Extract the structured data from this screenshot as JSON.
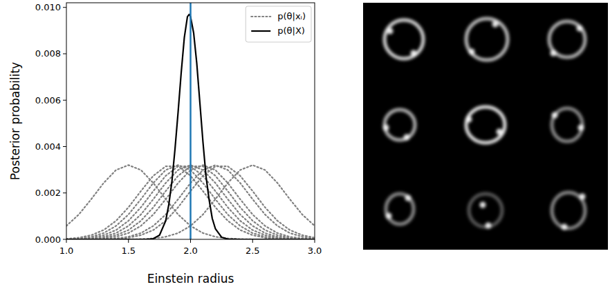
{
  "chart_data": {
    "type": "line",
    "x_label": "Einstein radius",
    "y_label": "Posterior probability",
    "xlim": [
      1.0,
      3.0
    ],
    "ylim": [
      0,
      0.0102
    ],
    "xticks": [
      {
        "value": 1.0,
        "label": "1.0"
      },
      {
        "value": 1.5,
        "label": "1.5"
      },
      {
        "value": 2.0,
        "label": "2.0"
      },
      {
        "value": 2.5,
        "label": "2.5"
      },
      {
        "value": 3.0,
        "label": "3.0"
      }
    ],
    "yticks": [
      {
        "value": 0,
        "label": "0.000"
      },
      {
        "value": 0.002,
        "label": "0.002"
      },
      {
        "value": 0.004,
        "label": "0.004"
      },
      {
        "value": 0.006,
        "label": "0.006"
      },
      {
        "value": 0.008,
        "label": "0.008"
      },
      {
        "value": 0.01,
        "label": "0.010"
      }
    ],
    "legend": "upper right",
    "grid": false,
    "reference_line": {
      "x": 2.0,
      "color": "#1f77b4"
    },
    "x": [
      1.0,
      1.1,
      1.2,
      1.3,
      1.4,
      1.5,
      1.6,
      1.7,
      1.8,
      1.9,
      2.0,
      2.1,
      2.2,
      2.3,
      2.4,
      2.5,
      2.6,
      2.7,
      2.8,
      2.9,
      3.0
    ],
    "series": [
      {
        "name": "p(θ|xᵢ)",
        "color": "#808080",
        "line_style": "dotted",
        "values": [
          0.00058,
          0.00107,
          0.00173,
          0.00243,
          0.00299,
          0.0032,
          0.00299,
          0.00243,
          0.00173,
          0.00107,
          0.00058,
          0.00027,
          0.00011,
          4e-05,
          1e-05,
          0,
          0,
          0,
          0,
          0,
          0
        ]
      },
      {
        "color": "#808080",
        "line_style": "dotted",
        "values": [
          2e-05,
          7e-05,
          0.00018,
          0.0004,
          0.0008,
          0.00138,
          0.00208,
          0.00274,
          0.00315,
          0.00315,
          0.00274,
          0.00208,
          0.00138,
          0.0008,
          0.0004,
          0.00018,
          7e-05,
          2e-05,
          1e-05,
          0,
          0
        ]
      },
      {
        "color": "#808080",
        "line_style": "dotted",
        "values": [
          1e-05,
          4e-05,
          0.00011,
          0.00027,
          0.00058,
          0.00107,
          0.00173,
          0.00243,
          0.00299,
          0.0032,
          0.00299,
          0.00243,
          0.00173,
          0.00107,
          0.00058,
          0.00027,
          0.00011,
          4e-05,
          1e-05,
          0,
          0
        ]
      },
      {
        "color": "#808080",
        "line_style": "dotted",
        "values": [
          1e-05,
          2e-05,
          7e-05,
          0.00018,
          0.0004,
          0.0008,
          0.00138,
          0.00208,
          0.00274,
          0.00315,
          0.00315,
          0.00274,
          0.00208,
          0.00138,
          0.0008,
          0.0004,
          0.00018,
          7e-05,
          2e-05,
          1e-05,
          0
        ]
      },
      {
        "color": "#808080",
        "line_style": "dotted",
        "values": [
          0,
          1e-05,
          4e-05,
          0.00011,
          0.00027,
          0.00058,
          0.00107,
          0.00173,
          0.00243,
          0.00299,
          0.0032,
          0.00299,
          0.00243,
          0.00173,
          0.00107,
          0.00058,
          0.00027,
          0.00011,
          4e-05,
          1e-05,
          0
        ]
      },
      {
        "color": "#808080",
        "line_style": "dotted",
        "values": [
          0,
          1e-05,
          2e-05,
          7e-05,
          0.00018,
          0.0004,
          0.0008,
          0.00138,
          0.00208,
          0.00274,
          0.00315,
          0.00315,
          0.00274,
          0.00208,
          0.00138,
          0.0008,
          0.0004,
          0.00018,
          7e-05,
          2e-05,
          1e-05
        ]
      },
      {
        "color": "#808080",
        "line_style": "dotted",
        "values": [
          0,
          0,
          1e-05,
          4e-05,
          0.00011,
          0.00027,
          0.00058,
          0.00107,
          0.00173,
          0.00243,
          0.00299,
          0.0032,
          0.00299,
          0.00243,
          0.00173,
          0.00107,
          0.00058,
          0.00027,
          0.00011,
          4e-05,
          1e-05
        ]
      },
      {
        "color": "#808080",
        "line_style": "dotted",
        "values": [
          0,
          0,
          0,
          1e-05,
          4e-05,
          0.00011,
          0.00027,
          0.00058,
          0.00107,
          0.00173,
          0.00243,
          0.00299,
          0.0032,
          0.00299,
          0.00243,
          0.00173,
          0.00107,
          0.00058,
          0.00027,
          0.00011,
          4e-05
        ]
      },
      {
        "color": "#808080",
        "line_style": "dotted",
        "values": [
          0,
          0,
          0,
          1e-05,
          2e-05,
          7e-05,
          0.00018,
          0.0004,
          0.0008,
          0.00138,
          0.00208,
          0.00274,
          0.00315,
          0.00315,
          0.00274,
          0.00208,
          0.00138,
          0.0008,
          0.0004,
          0.00018,
          7e-05
        ]
      },
      {
        "color": "#808080",
        "line_style": "dotted",
        "values": [
          0,
          0,
          0,
          0,
          0,
          0,
          1e-05,
          4e-05,
          0.00011,
          0.00027,
          0.00058,
          0.00107,
          0.00173,
          0.00243,
          0.00299,
          0.0032,
          0.00299,
          0.00243,
          0.00173,
          0.00107,
          0.00058
        ]
      },
      {
        "name": "p(θ|X)",
        "color": "#000000",
        "line_style": "solid",
        "x": [
          1.0,
          1.5,
          1.65,
          1.7,
          1.75,
          1.8,
          1.825,
          1.85,
          1.875,
          1.9,
          1.925,
          1.95,
          1.975,
          1.99,
          2.0,
          2.025,
          2.05,
          2.075,
          2.1,
          2.125,
          2.15,
          2.175,
          2.2,
          2.25,
          2.3,
          2.4,
          3.0
        ],
        "values": [
          0,
          0,
          0,
          3e-05,
          0.00018,
          0.0008,
          0.0015,
          0.0025,
          0.0039,
          0.0055,
          0.0072,
          0.0087,
          0.0096,
          0.0097,
          0.0096,
          0.0089,
          0.0076,
          0.0059,
          0.0042,
          0.0027,
          0.0017,
          0.0009,
          0.00046,
          9e-05,
          1e-05,
          0,
          0
        ]
      }
    ]
  }
}
